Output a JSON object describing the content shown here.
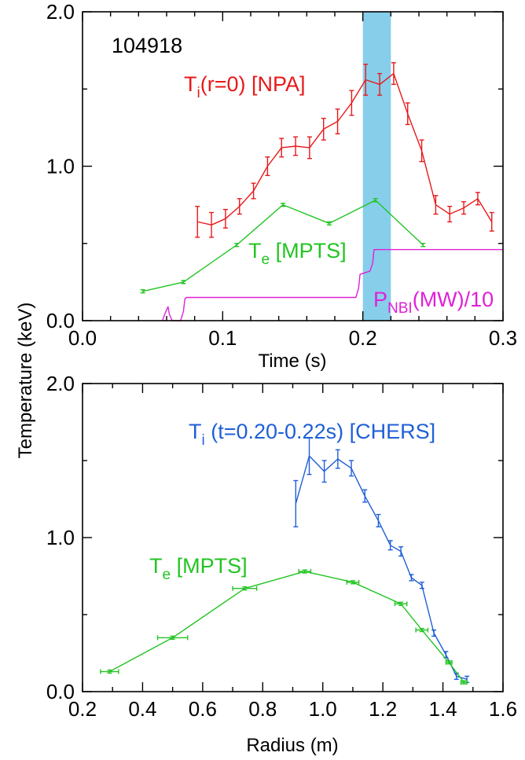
{
  "shared": {
    "ylabel": "Temperature (keV)"
  },
  "chart_data": [
    {
      "type": "line",
      "xlabel": "Time (s)",
      "xlim": [
        0.0,
        0.3
      ],
      "ylim": [
        0.0,
        2.0
      ],
      "x_ticks": [
        "0.0",
        "0.1",
        "0.2",
        "0.3"
      ],
      "y_ticks": [
        "0.0",
        "1.0",
        "2.0"
      ],
      "shot_label": "104918",
      "shaded_region": {
        "x": [
          0.2,
          0.22
        ],
        "color": "#87ceeb"
      },
      "series": [
        {
          "name": "Ti(r=0) [NPA]",
          "label_main": "T",
          "label_sub": "i",
          "label_rest": "(r=0) [NPA]",
          "color": "#e8191a",
          "x": [
            0.082,
            0.092,
            0.102,
            0.112,
            0.122,
            0.132,
            0.142,
            0.152,
            0.162,
            0.172,
            0.182,
            0.192,
            0.202,
            0.212,
            0.222,
            0.232,
            0.242,
            0.252,
            0.262,
            0.272,
            0.282,
            0.292
          ],
          "y": [
            0.64,
            0.62,
            0.66,
            0.74,
            0.84,
            1.0,
            1.12,
            1.13,
            1.12,
            1.24,
            1.29,
            1.41,
            1.56,
            1.53,
            1.6,
            1.34,
            1.1,
            0.75,
            0.69,
            0.73,
            0.79,
            0.64
          ],
          "err": [
            0.1,
            0.08,
            0.06,
            0.05,
            0.05,
            0.06,
            0.06,
            0.06,
            0.07,
            0.07,
            0.08,
            0.08,
            0.1,
            0.07,
            0.07,
            0.07,
            0.07,
            0.06,
            0.05,
            0.04,
            0.04,
            0.06
          ]
        },
        {
          "name": "Te [MPTS]",
          "label_main": "T",
          "label_sub": "e",
          "label_rest": " [MPTS]",
          "color": "#22c422",
          "x": [
            0.043,
            0.072,
            0.11,
            0.143,
            0.176,
            0.209,
            0.243
          ],
          "y": [
            0.19,
            0.25,
            0.49,
            0.75,
            0.63,
            0.78,
            0.49
          ],
          "err": [
            0.01,
            0.01,
            0.01,
            0.01,
            0.01,
            0.01,
            0.01
          ]
        },
        {
          "name": "PNBI(MW)/10",
          "label_main": "P",
          "label_sub": "NBI",
          "label_rest": "(MW)/10",
          "color": "#e020d8",
          "x": [
            0.057,
            0.059,
            0.061,
            0.062,
            0.064,
            0.07,
            0.072,
            0.073,
            0.074,
            0.195,
            0.197,
            0.198,
            0.205,
            0.207,
            0.208,
            0.3
          ],
          "y": [
            0.0,
            0.05,
            0.09,
            0.04,
            0.0,
            0.0,
            0.06,
            0.14,
            0.15,
            0.15,
            0.21,
            0.3,
            0.32,
            0.37,
            0.46,
            0.46
          ]
        }
      ]
    },
    {
      "type": "line",
      "xlabel": "Radius (m)",
      "xlim": [
        0.2,
        1.6
      ],
      "ylim": [
        0.0,
        2.0
      ],
      "x_ticks": [
        "0.2",
        "0.4",
        "0.6",
        "0.8",
        "1.0",
        "1.2",
        "1.4",
        "1.6"
      ],
      "y_ticks": [
        "0.0",
        "1.0",
        "2.0"
      ],
      "series": [
        {
          "name": "Ti (t=0.20-0.22s) [CHERS]",
          "label_main": "T",
          "label_sub": "i",
          "label_rest": " (t=0.20-0.22s) [CHERS]",
          "color": "#1f5fd8",
          "x": [
            0.91,
            0.955,
            1.005,
            1.05,
            1.095,
            1.14,
            1.185,
            1.225,
            1.26,
            1.295,
            1.33,
            1.37,
            1.41,
            1.445,
            1.48
          ],
          "y": [
            1.22,
            1.53,
            1.43,
            1.51,
            1.45,
            1.27,
            1.11,
            0.95,
            0.91,
            0.74,
            0.69,
            0.38,
            0.24,
            0.1,
            0.08
          ],
          "err": [
            0.15,
            0.12,
            0.07,
            0.06,
            0.05,
            0.04,
            0.04,
            0.03,
            0.03,
            0.02,
            0.02,
            0.02,
            0.02,
            0.02,
            0.02
          ]
        },
        {
          "name": "Te [MPTS]",
          "label_main": "T",
          "label_sub": "e",
          "label_rest": " [MPTS]",
          "color": "#22c422",
          "x": [
            0.29,
            0.5,
            0.74,
            0.94,
            1.1,
            1.26,
            1.33,
            1.42,
            1.47
          ],
          "y": [
            0.13,
            0.35,
            0.67,
            0.78,
            0.71,
            0.57,
            0.4,
            0.19,
            0.06
          ],
          "err": [
            0.01,
            0.01,
            0.01,
            0.01,
            0.01,
            0.01,
            0.01,
            0.01,
            0.01
          ],
          "xerr": [
            0.03,
            0.05,
            0.04,
            0.02,
            0.02,
            0.02,
            0.02,
            0.01,
            0.01
          ]
        }
      ]
    }
  ]
}
